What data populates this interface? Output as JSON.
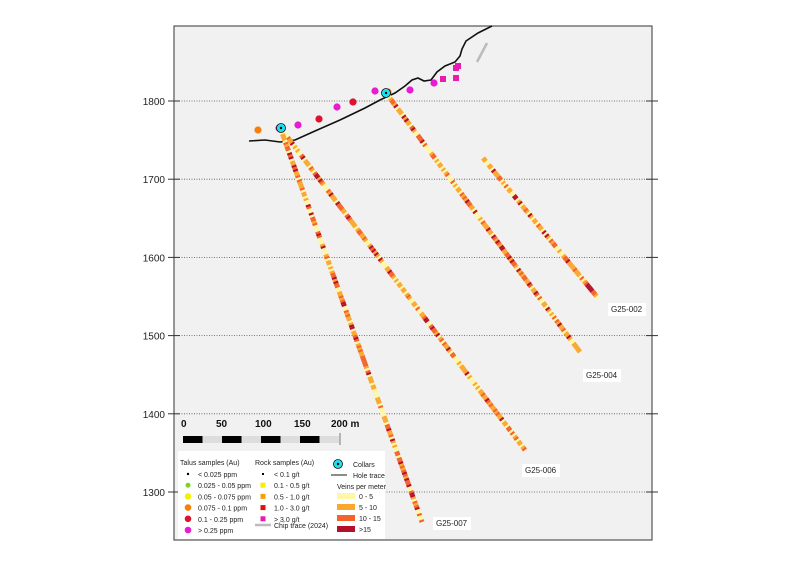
{
  "y_axis": {
    "ticks": [
      1800,
      1700,
      1600,
      1500,
      1400,
      1300
    ]
  },
  "scale_bar": {
    "labels": [
      "0",
      "50",
      "100",
      "150",
      "200 m"
    ]
  },
  "holes": [
    {
      "name": "G25-002"
    },
    {
      "name": "G25-004"
    },
    {
      "name": "G25-006"
    },
    {
      "name": "G25-007"
    }
  ],
  "legend": {
    "talus_title": "Talus samples (Au)",
    "talus": [
      {
        "label": "< 0.025 ppm",
        "color": "#000000"
      },
      {
        "label": "0.025 - 0.05 ppm",
        "color": "#7ed321"
      },
      {
        "label": "0.05 - 0.075 ppm",
        "color": "#f5ef00"
      },
      {
        "label": "0.075 - 0.1 ppm",
        "color": "#f57f0b"
      },
      {
        "label": "0.1 - 0.25 ppm",
        "color": "#e0102f"
      },
      {
        "label": "> 0.25 ppm",
        "color": "#e81ad2"
      }
    ],
    "rock_title": "Rock samples (Au)",
    "rock": [
      {
        "label": "< 0.1 g/t",
        "color": "#000000"
      },
      {
        "label": "0.1 - 0.5 g/t",
        "color": "#f5ef00"
      },
      {
        "label": "0.5 - 1.0 g/t",
        "color": "#f5a00b"
      },
      {
        "label": "1.0 - 3.0 g/t",
        "color": "#e01010"
      },
      {
        "label": "> 3.0 g/t",
        "color": "#e81ab0"
      }
    ],
    "chip_trace": "Chip trace (2024)",
    "collars": "Collars",
    "hole_trace": "Hole trace",
    "veins_title": "Veins per meter",
    "veins": [
      {
        "label": "0 - 5",
        "color": "#fff7a8"
      },
      {
        "label": "5 - 10",
        "color": "#fba72e"
      },
      {
        "label": "10 - 15",
        "color": "#f4632a"
      },
      {
        "label": ">15",
        "color": "#b5102a"
      }
    ]
  }
}
